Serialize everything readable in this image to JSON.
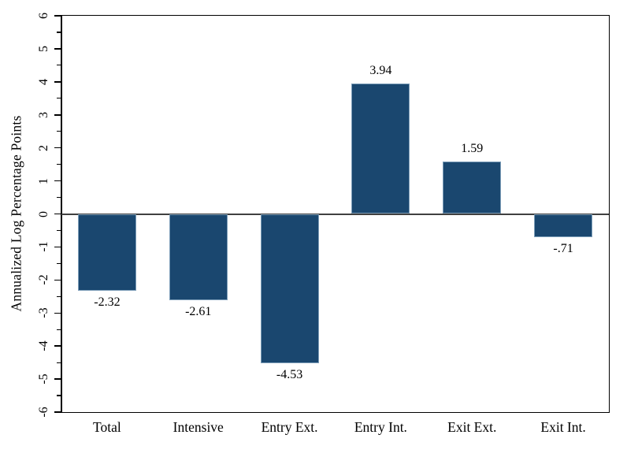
{
  "chart_data": {
    "type": "bar",
    "categories": [
      "Total",
      "Intensive",
      "Entry Ext.",
      "Entry Int.",
      "Exit Ext.",
      "Exit Int."
    ],
    "values": [
      -2.32,
      -2.61,
      -4.53,
      3.94,
      1.59,
      -0.71
    ],
    "value_labels": [
      "-2.32",
      "-2.61",
      "-4.53",
      "3.94",
      "1.59",
      "-.71"
    ],
    "title": "",
    "xlabel": "",
    "ylabel": "Annualized Log Percentage Points",
    "ylim": [
      -6,
      6
    ],
    "y_major_ticks": [
      6,
      5,
      4,
      3,
      2,
      1,
      0,
      -1,
      -2,
      -3,
      -4,
      -5,
      -6
    ],
    "y_minor_step": 0.5,
    "grid": false,
    "legend": null,
    "y_tick_label_rotation_deg": -90,
    "colors": {
      "bar_fill": "#1A476F",
      "bar_edge": "#7C9DB8",
      "zero_line": "#404040",
      "frame": "#000000",
      "background": "#FFFFFF",
      "text": "#000000"
    }
  }
}
